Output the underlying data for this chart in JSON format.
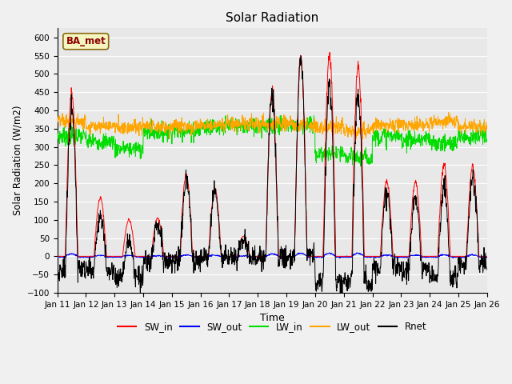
{
  "title": "Solar Radiation",
  "xlabel": "Time",
  "ylabel": "Solar Radiation (W/m2)",
  "ylim": [
    -100,
    625
  ],
  "yticks": [
    -100,
    -50,
    0,
    50,
    100,
    150,
    200,
    250,
    300,
    350,
    400,
    450,
    500,
    550,
    600
  ],
  "xtick_labels": [
    "Jan 11",
    "Jan 12",
    "Jan 13",
    "Jan 14",
    "Jan 15",
    "Jan 16",
    "Jan 17",
    "Jan 18",
    "Jan 19",
    "Jan 20",
    "Jan 21",
    "Jan 22",
    "Jan 23",
    "Jan 24",
    "Jan 25",
    "Jan 26"
  ],
  "colors": {
    "SW_in": "#ff0000",
    "SW_out": "#0000ff",
    "LW_in": "#00dd00",
    "LW_out": "#ffa500",
    "Rnet": "#000000"
  },
  "legend_label": "BA_met",
  "background_color": "#e8e8e8",
  "grid_color": "#ffffff",
  "points_per_day": 96,
  "n_days": 15,
  "sw_in_peaks": [
    450,
    160,
    100,
    105,
    225,
    185,
    55,
    450,
    545,
    555,
    525,
    205,
    205,
    250,
    245
  ],
  "lw_in_base": 330,
  "lw_out_base": 358,
  "figsize": [
    6.4,
    4.8
  ],
  "dpi": 100
}
